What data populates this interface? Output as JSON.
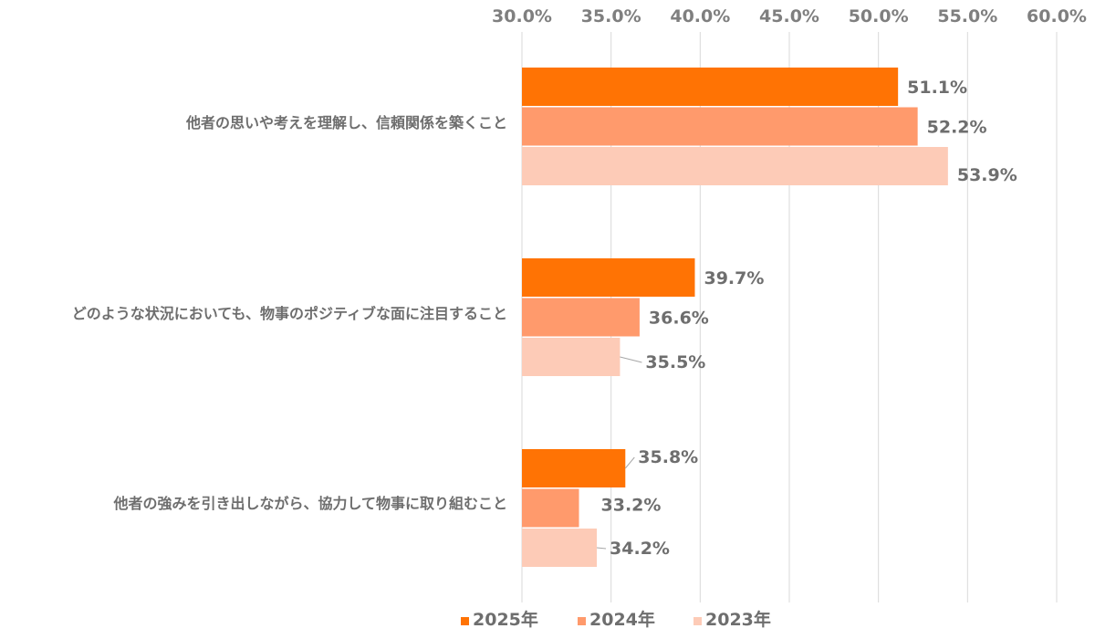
{
  "chart_data": {
    "type": "bar",
    "orientation": "horizontal",
    "categories": [
      "他者の思いや考えを理解し、信頼関係を築くこと",
      "どのような状況においても、物事のポジティブな面に注目すること",
      "他者の強みを引き出しながら、協力して物事に取り組むこと"
    ],
    "series": [
      {
        "name": "2025年",
        "color": "#ff7304",
        "values": [
          51.1,
          39.7,
          35.8
        ],
        "labels": [
          "51.1%",
          "39.7%",
          "35.8%"
        ]
      },
      {
        "name": "2024年",
        "color": "#ff9a6c",
        "values": [
          52.2,
          36.6,
          33.2
        ],
        "labels": [
          "52.2%",
          "36.6%",
          "33.2%"
        ]
      },
      {
        "name": "2023年",
        "color": "#fdcbb7",
        "values": [
          53.9,
          35.5,
          34.2
        ],
        "labels": [
          "53.9%",
          "35.5%",
          "34.2%"
        ]
      }
    ],
    "xlim": [
      30,
      60
    ],
    "ticks": [
      30,
      35,
      40,
      45,
      50,
      55,
      60
    ],
    "tick_labels": [
      "30.0%",
      "35.0%",
      "40.0%",
      "45.0%",
      "50.0%",
      "55.0%",
      "60.0%"
    ],
    "axis_position": "top",
    "grid": true,
    "legend_position": "bottom",
    "title": "",
    "xlabel": "",
    "ylabel": ""
  }
}
